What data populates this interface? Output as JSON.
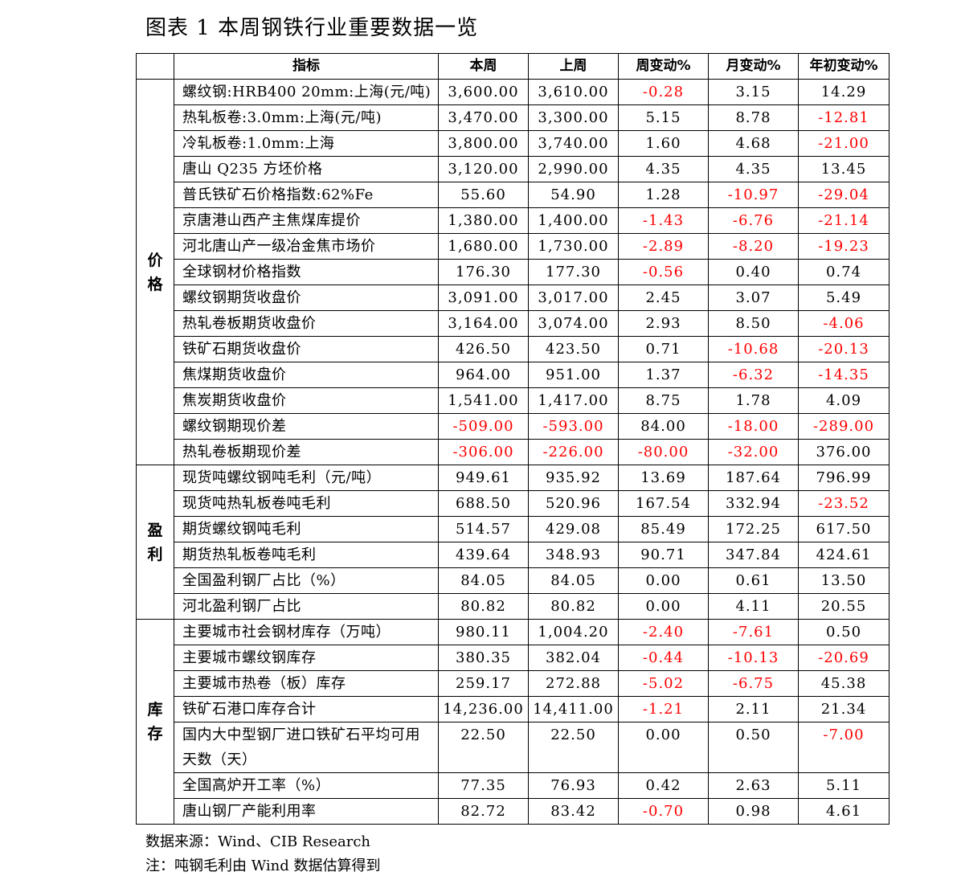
{
  "caption": "图表 1 本周钢铁行业重要数据一览",
  "headers": [
    "指标",
    "本周",
    "上周",
    "周变动%",
    "月变动%",
    "年初变动%"
  ],
  "sections": [
    {
      "label": "价格",
      "rows": [
        {
          "name": "螺纹钢:HRB400 20mm:上海(元/吨)",
          "values": [
            "3,600.00",
            "3,610.00",
            "-0.28",
            "3.15",
            "14.29"
          ]
        },
        {
          "name": "热轧板卷:3.0mm:上海(元/吨)",
          "values": [
            "3,470.00",
            "3,300.00",
            "5.15",
            "8.78",
            "-12.81"
          ]
        },
        {
          "name": "冷轧板卷:1.0mm:上海",
          "values": [
            "3,800.00",
            "3,740.00",
            "1.60",
            "4.68",
            "-21.00"
          ]
        },
        {
          "name": "唐山 Q235 方坯价格",
          "values": [
            "3,120.00",
            "2,990.00",
            "4.35",
            "4.35",
            "13.45"
          ]
        },
        {
          "name": "普氏铁矿石价格指数:62%Fe",
          "values": [
            "55.60",
            "54.90",
            "1.28",
            "-10.97",
            "-29.04"
          ]
        },
        {
          "name": "京唐港山西产主焦煤库提价",
          "values": [
            "1,380.00",
            "1,400.00",
            "-1.43",
            "-6.76",
            "-21.14"
          ]
        },
        {
          "name": "河北唐山产一级冶金焦市场价",
          "values": [
            "1,680.00",
            "1,730.00",
            "-2.89",
            "-8.20",
            "-19.23"
          ]
        },
        {
          "name": "全球钢材价格指数",
          "values": [
            "176.30",
            "177.30",
            "-0.56",
            "0.40",
            "0.74"
          ]
        },
        {
          "name": "螺纹钢期货收盘价",
          "values": [
            "3,091.00",
            "3,017.00",
            "2.45",
            "3.07",
            "5.49"
          ]
        },
        {
          "name": "热轧卷板期货收盘价",
          "values": [
            "3,164.00",
            "3,074.00",
            "2.93",
            "8.50",
            "-4.06"
          ]
        },
        {
          "name": "铁矿石期货收盘价",
          "values": [
            "426.50",
            "423.50",
            "0.71",
            "-10.68",
            "-20.13"
          ]
        },
        {
          "name": "焦煤期货收盘价",
          "values": [
            "964.00",
            "951.00",
            "1.37",
            "-6.32",
            "-14.35"
          ]
        },
        {
          "name": "焦炭期货收盘价",
          "values": [
            "1,541.00",
            "1,417.00",
            "8.75",
            "1.78",
            "4.09"
          ]
        },
        {
          "name": "螺纹钢期现价差",
          "values": [
            "-509.00",
            "-593.00",
            "84.00",
            "-18.00",
            "-289.00"
          ]
        },
        {
          "name": "热轧卷板期现价差",
          "values": [
            "-306.00",
            "-226.00",
            "-80.00",
            "-32.00",
            "376.00"
          ]
        }
      ]
    },
    {
      "label": "盈利",
      "rows": [
        {
          "name": "现货吨螺纹钢吨毛利（元/吨）",
          "values": [
            "949.61",
            "935.92",
            "13.69",
            "187.64",
            "796.99"
          ]
        },
        {
          "name": "现货吨热轧板卷吨毛利",
          "values": [
            "688.50",
            "520.96",
            "167.54",
            "332.94",
            "-23.52"
          ]
        },
        {
          "name": "期货螺纹钢吨毛利",
          "values": [
            "514.57",
            "429.08",
            "85.49",
            "172.25",
            "617.50"
          ]
        },
        {
          "name": "期货热轧板卷吨毛利",
          "values": [
            "439.64",
            "348.93",
            "90.71",
            "347.84",
            "424.61"
          ]
        },
        {
          "name": "全国盈利钢厂占比（%）",
          "values": [
            "84.05",
            "84.05",
            "0.00",
            "0.61",
            "13.50"
          ]
        },
        {
          "name": "河北盈利钢厂占比",
          "values": [
            "80.82",
            "80.82",
            "0.00",
            "4.11",
            "20.55"
          ]
        }
      ]
    },
    {
      "label": "库存",
      "rows": [
        {
          "name": "主要城市社会钢材库存（万吨）",
          "values": [
            "980.11",
            "1,004.20",
            "-2.40",
            "-7.61",
            "0.50"
          ]
        },
        {
          "name": "主要城市螺纹钢库存",
          "values": [
            "380.35",
            "382.04",
            "-0.44",
            "-10.13",
            "-20.69"
          ]
        },
        {
          "name": "主要城市热卷（板）库存",
          "values": [
            "259.17",
            "272.88",
            "-5.02",
            "-6.75",
            "45.38"
          ]
        },
        {
          "name": "铁矿石港口库存合计",
          "values": [
            "14,236.00",
            "14,411.00",
            "-1.21",
            "2.11",
            "21.34"
          ]
        },
        {
          "name": "国内大中型钢厂进口铁矿石平均可用天数（天）",
          "values": [
            "22.50",
            "22.50",
            "0.00",
            "0.50",
            "-7.00"
          ],
          "tall": true
        },
        {
          "name": "全国高炉开工率（%）",
          "values": [
            "77.35",
            "76.93",
            "0.42",
            "2.63",
            "5.11"
          ]
        },
        {
          "name": "唐山钢厂产能利用率",
          "values": [
            "82.72",
            "83.42",
            "-0.70",
            "0.98",
            "4.61"
          ]
        }
      ]
    }
  ],
  "notes": {
    "source": "数据来源：Wind、CIB Research",
    "remark": "注：吨钢毛利由 Wind 数据估算得到"
  },
  "colors": {
    "negative": "#ff0000",
    "text": "#000000",
    "border": "#000000"
  }
}
